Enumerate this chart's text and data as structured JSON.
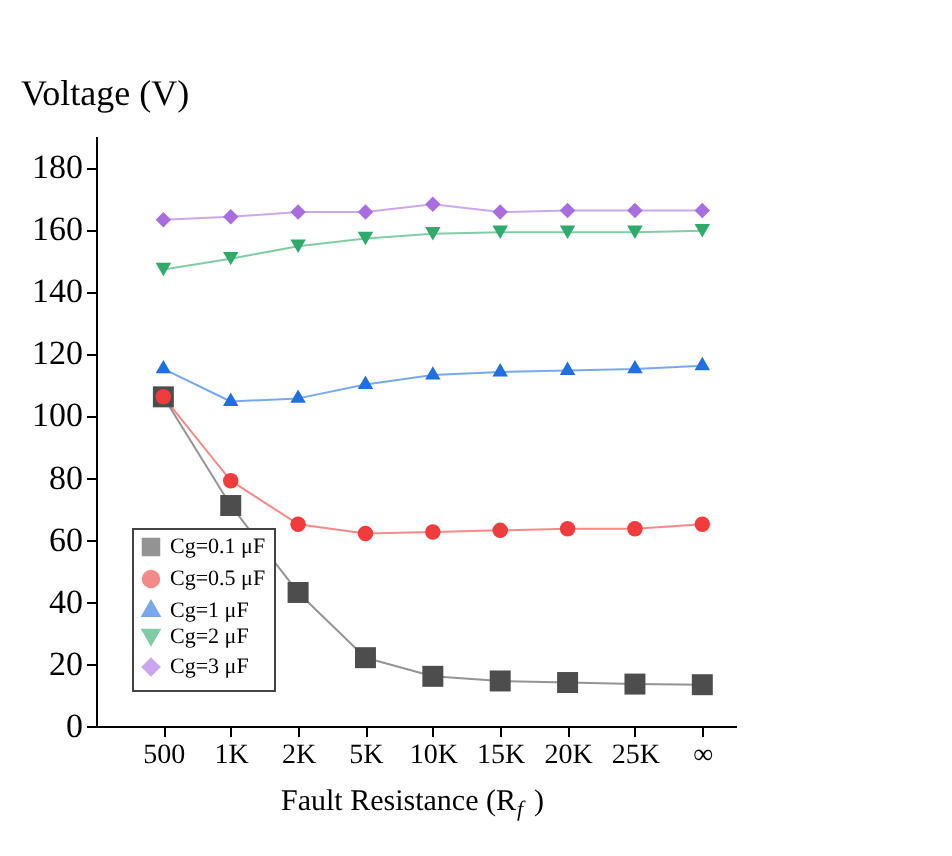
{
  "chart_data": {
    "type": "line",
    "ylabel": "Voltage (V)",
    "xlabel": "Fault Resistance (R$_{f}$)",
    "categories": [
      "500",
      "1K",
      "2K",
      "5K",
      "10K",
      "15K",
      "20K",
      "25K",
      "∞"
    ],
    "series": [
      {
        "name": "Cg=0.1 μF",
        "color": "#4d4d4d",
        "marker": "square",
        "values": [
          106,
          71,
          43,
          22,
          16,
          14.5,
          14,
          13.5,
          13.3
        ]
      },
      {
        "name": "Cg=0.5 μF",
        "color": "#f03c3c",
        "marker": "circle",
        "values": [
          106,
          79,
          65,
          62,
          62.5,
          63,
          63.5,
          63.5,
          65
        ]
      },
      {
        "name": "Cg=1 μF",
        "color": "#1f6fe0",
        "marker": "triangle",
        "values": [
          115,
          104.5,
          105.5,
          110,
          113,
          114,
          114.5,
          115,
          116
        ]
      },
      {
        "name": "Cg=2 μF",
        "color": "#2eaa6a",
        "marker": "triangle-down",
        "values": [
          147,
          150.5,
          154.5,
          157,
          158.5,
          159,
          159,
          159,
          159.5
        ]
      },
      {
        "name": "Cg=3 μF",
        "color": "#a86ee0",
        "marker": "diamond",
        "values": [
          163,
          164,
          165.5,
          165.5,
          168,
          165.5,
          166,
          166,
          166
        ]
      }
    ],
    "ylim": [
      0,
      190
    ],
    "yticks": [
      0,
      20,
      40,
      60,
      80,
      100,
      120,
      140,
      160,
      180
    ],
    "grid": false,
    "legend": "bottom left",
    "line_style": "solid"
  }
}
